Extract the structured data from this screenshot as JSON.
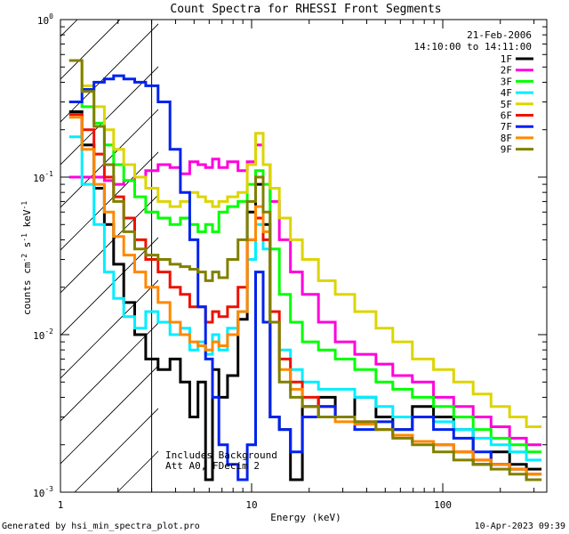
{
  "chart_data": {
    "type": "line",
    "title": "Count Spectra for RHESSI Front Segments",
    "xlabel": "Energy (keV)",
    "ylabel": "counts cm",
    "ylabel_sup1": "-2",
    "ylabel_mid": " s",
    "ylabel_sup2": "-1",
    "ylabel_end": " keV",
    "ylabel_sup3": "-1",
    "xscale": "log",
    "yscale": "log",
    "xlim": [
      1,
      350
    ],
    "ylim": [
      0.001,
      1
    ],
    "x_ticks": [
      {
        "value": 1,
        "label": "1"
      },
      {
        "value": 10,
        "label": "10"
      },
      {
        "value": 100,
        "label": "100"
      }
    ],
    "y_ticks": [
      {
        "value": 1,
        "base": "10",
        "exp": "0"
      },
      {
        "value": 0.1,
        "base": "10",
        "exp": "-1"
      },
      {
        "value": 0.01,
        "base": "10",
        "exp": "-2"
      },
      {
        "value": 0.001,
        "base": "10",
        "exp": "-3"
      }
    ],
    "date": "21-Feb-2006",
    "time_range": "14:10:00 to 14:11:00",
    "hatched_below_keV": 3,
    "annotations": [
      "Includes Background",
      "Att A0, FDecim 2"
    ],
    "footer_left": "Generated by hsi_min_spectra_plot.pro",
    "footer_right": "10-Apr-2023 09:39",
    "x": [
      1.2,
      1.4,
      1.6,
      1.8,
      2.0,
      2.3,
      2.6,
      3.0,
      3.5,
      4.0,
      4.5,
      5.0,
      5.5,
      6.0,
      6.5,
      7.0,
      8.0,
      9.0,
      10.0,
      11.0,
      12.0,
      13.0,
      15.0,
      17.0,
      20.0,
      25.0,
      30.0,
      40.0,
      50.0,
      60.0,
      80.0,
      100.0,
      130.0,
      160.0,
      200.0,
      250.0,
      300.0
    ],
    "series": [
      {
        "name": "1F",
        "color": "#000000",
        "values": [
          0.26,
          0.16,
          0.085,
          0.05,
          0.028,
          0.016,
          0.01,
          0.007,
          0.006,
          0.007,
          0.005,
          0.003,
          0.005,
          0.0012,
          0.006,
          0.004,
          0.0055,
          0.0125,
          0.06,
          0.09,
          0.05,
          0.003,
          0.0025,
          0.0012,
          0.0035,
          0.004,
          0.003,
          0.004,
          0.003,
          0.0025,
          0.0035,
          0.003,
          0.0025,
          0.0015,
          0.0018,
          0.0015,
          0.0014
        ]
      },
      {
        "name": "2F",
        "color": "#ff00dd",
        "values": [
          0.1,
          0.1,
          0.1,
          0.095,
          0.09,
          0.095,
          0.1,
          0.11,
          0.12,
          0.115,
          0.105,
          0.125,
          0.12,
          0.115,
          0.13,
          0.115,
          0.125,
          0.11,
          0.125,
          0.16,
          0.12,
          0.07,
          0.04,
          0.025,
          0.018,
          0.012,
          0.009,
          0.0075,
          0.0065,
          0.0055,
          0.005,
          0.004,
          0.0035,
          0.003,
          0.0026,
          0.0022,
          0.002
        ]
      },
      {
        "name": "3F",
        "color": "#00ff00",
        "values": [
          0.3,
          0.28,
          0.22,
          0.16,
          0.12,
          0.095,
          0.075,
          0.06,
          0.055,
          0.05,
          0.055,
          0.05,
          0.045,
          0.05,
          0.045,
          0.06,
          0.065,
          0.07,
          0.09,
          0.11,
          0.09,
          0.035,
          0.018,
          0.012,
          0.009,
          0.008,
          0.007,
          0.006,
          0.005,
          0.0045,
          0.004,
          0.0035,
          0.003,
          0.0025,
          0.0022,
          0.002,
          0.0018
        ]
      },
      {
        "name": "4F",
        "color": "#00eeff",
        "values": [
          0.18,
          0.09,
          0.05,
          0.025,
          0.017,
          0.013,
          0.011,
          0.014,
          0.012,
          0.01,
          0.011,
          0.008,
          0.009,
          0.0075,
          0.01,
          0.008,
          0.011,
          0.014,
          0.03,
          0.05,
          0.035,
          0.012,
          0.008,
          0.006,
          0.005,
          0.0045,
          0.0045,
          0.004,
          0.0035,
          0.003,
          0.003,
          0.0028,
          0.0025,
          0.0022,
          0.002,
          0.0018,
          0.0016
        ]
      },
      {
        "name": "5F",
        "color": "#ddd500",
        "values": [
          0.55,
          0.38,
          0.28,
          0.2,
          0.15,
          0.12,
          0.1,
          0.085,
          0.07,
          0.065,
          0.07,
          0.08,
          0.075,
          0.07,
          0.065,
          0.07,
          0.075,
          0.08,
          0.12,
          0.19,
          0.12,
          0.085,
          0.055,
          0.04,
          0.03,
          0.022,
          0.018,
          0.014,
          0.011,
          0.009,
          0.007,
          0.006,
          0.005,
          0.0042,
          0.0035,
          0.003,
          0.0026
        ]
      },
      {
        "name": "6F",
        "color": "#ee1100",
        "values": [
          0.25,
          0.2,
          0.14,
          0.1,
          0.075,
          0.055,
          0.04,
          0.03,
          0.025,
          0.02,
          0.018,
          0.015,
          0.015,
          0.012,
          0.014,
          0.013,
          0.015,
          0.02,
          0.04,
          0.055,
          0.04,
          0.014,
          0.007,
          0.005,
          0.004,
          0.0035,
          0.003,
          0.0028,
          0.0025,
          0.0023,
          0.0021,
          0.002,
          0.0018,
          0.0016,
          0.0015,
          0.0014,
          0.0013
        ]
      },
      {
        "name": "7F",
        "color": "#0022ee",
        "values": [
          0.3,
          0.36,
          0.4,
          0.42,
          0.44,
          0.42,
          0.4,
          0.38,
          0.3,
          0.15,
          0.08,
          0.04,
          0.015,
          0.007,
          0.004,
          0.002,
          0.0015,
          0.0012,
          0.002,
          0.025,
          0.012,
          0.003,
          0.0025,
          0.0018,
          0.003,
          0.0035,
          0.003,
          0.0025,
          0.0028,
          0.0025,
          0.003,
          0.0025,
          0.0022,
          0.0018,
          0.0015,
          0.0014,
          0.0012
        ]
      },
      {
        "name": "8F",
        "color": "#ff8800",
        "values": [
          0.24,
          0.15,
          0.09,
          0.06,
          0.042,
          0.032,
          0.025,
          0.02,
          0.016,
          0.012,
          0.01,
          0.009,
          0.0085,
          0.008,
          0.009,
          0.0085,
          0.01,
          0.014,
          0.04,
          0.065,
          0.045,
          0.012,
          0.006,
          0.0045,
          0.0035,
          0.003,
          0.0028,
          0.0027,
          0.0025,
          0.0023,
          0.0021,
          0.002,
          0.0018,
          0.0016,
          0.0015,
          0.0014,
          0.0013
        ]
      },
      {
        "name": "9F",
        "color": "#808000",
        "values": [
          0.55,
          0.35,
          0.21,
          0.12,
          0.07,
          0.045,
          0.035,
          0.032,
          0.03,
          0.028,
          0.027,
          0.026,
          0.025,
          0.022,
          0.025,
          0.023,
          0.03,
          0.04,
          0.07,
          0.1,
          0.06,
          0.012,
          0.005,
          0.004,
          0.0035,
          0.003,
          0.003,
          0.0028,
          0.0025,
          0.0022,
          0.002,
          0.0018,
          0.0016,
          0.0015,
          0.0014,
          0.0013,
          0.0012
        ]
      }
    ]
  }
}
